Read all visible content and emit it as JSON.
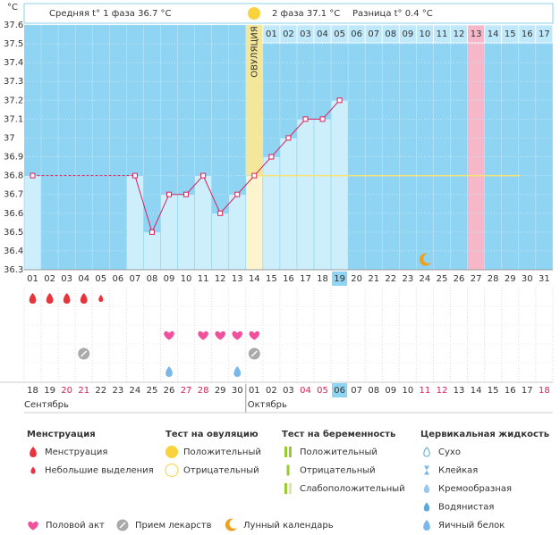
{
  "chart_data": {
    "type": "line",
    "y_unit": "°C",
    "header": {
      "phase1": "Средняя t° 1 фаза 36.7 °C",
      "phase2": "2 фаза 37.1 °C",
      "difference": "Разница t° 0.4 °C"
    },
    "ovulation_label": "ОВУЛЯЦИЯ",
    "categories": [
      "01",
      "02",
      "03",
      "04",
      "05",
      "06",
      "07",
      "08",
      "09",
      "10",
      "11",
      "12",
      "13",
      "14",
      "15",
      "16",
      "17",
      "18",
      "19",
      "20",
      "21",
      "22",
      "23",
      "24",
      "25",
      "26",
      "27",
      "28",
      "29",
      "30",
      "31"
    ],
    "values": [
      36.8,
      null,
      null,
      null,
      null,
      null,
      36.8,
      36.5,
      36.7,
      36.7,
      36.8,
      36.6,
      36.7,
      36.8,
      36.9,
      37.0,
      37.1,
      37.1,
      37.2,
      null,
      null,
      null,
      null,
      null,
      null,
      null,
      null,
      null,
      null,
      null,
      null
    ],
    "color": "#d8205a",
    "ylim": [
      36.3,
      37.6
    ],
    "yticks": [
      36.3,
      36.4,
      36.5,
      36.6,
      36.7,
      36.8,
      36.9,
      37,
      37.1,
      37.2,
      37.3,
      37.4,
      37.5,
      37.6
    ],
    "grid": true,
    "cover_line": 36.8,
    "post_ovulation_days": [
      "01",
      "02",
      "03",
      "04",
      "05",
      "06",
      "07",
      "08",
      "09",
      "10",
      "11",
      "12",
      "13",
      "14",
      "15",
      "16",
      "17"
    ],
    "highlights": {
      "ovulation": "14",
      "today": "19",
      "expected": "27"
    },
    "dates": [
      "18",
      "19",
      "20",
      "21",
      "22",
      "23",
      "24",
      "25",
      "26",
      "27",
      "28",
      "29",
      "30",
      "01",
      "02",
      "03",
      "04",
      "05",
      "06",
      "07",
      "08",
      "09",
      "10",
      "11",
      "12",
      "13",
      "14",
      "15",
      "16",
      "17",
      "18"
    ],
    "date_weekend": [
      false,
      false,
      true,
      true,
      false,
      false,
      false,
      false,
      false,
      true,
      true,
      false,
      false,
      false,
      false,
      false,
      true,
      true,
      false,
      false,
      false,
      false,
      false,
      true,
      true,
      false,
      false,
      false,
      false,
      false,
      true
    ],
    "months": [
      "Сентябрь",
      "Октябрь"
    ],
    "markers": {
      "menstruation": [
        "01",
        "02",
        "03",
        "04"
      ],
      "spotting": [
        "05"
      ],
      "intercourse": [
        "09",
        "11",
        "12",
        "13",
        "14"
      ],
      "medication": [
        "04",
        "14"
      ],
      "egg_white": [
        "09",
        "13"
      ],
      "moon": [
        "24"
      ]
    },
    "legend": {
      "groups": [
        {
          "title": "Менструация",
          "items": [
            "Менструация",
            "Небольшие выделения"
          ]
        },
        {
          "title": "Тест на овуляцию",
          "items": [
            "Положительный",
            "Отрицательный"
          ]
        },
        {
          "title": "Тест на беременность",
          "items": [
            "Положительный",
            "Отрицательный",
            "Слабоположительный"
          ]
        },
        {
          "title": "Цервикальная жидкость",
          "items": [
            "Сухо",
            "Клейкая",
            "Кремообразная",
            "Водянистая",
            "Яичный белок"
          ]
        }
      ],
      "extra": [
        "Половой акт",
        "Прием лекарств",
        "Лунный календарь"
      ]
    }
  }
}
